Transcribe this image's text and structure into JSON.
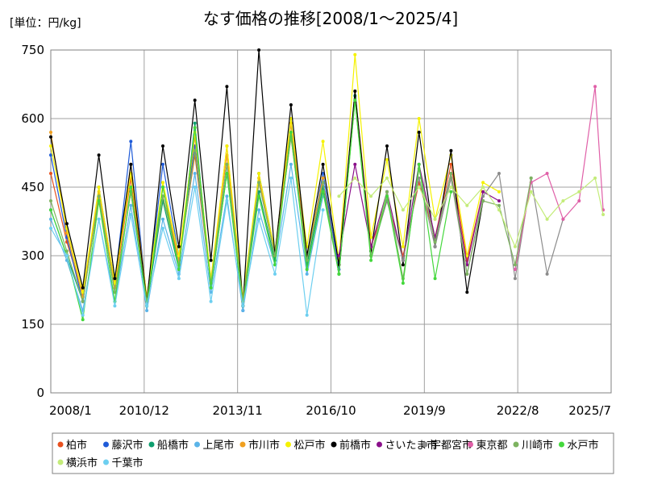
{
  "chart_data": {
    "type": "line",
    "title": "なす価格の推移[2008/1～2025/4]",
    "unit_label": "[単位：円/kg]",
    "xlabel": "",
    "ylabel": "",
    "ylim": [
      0,
      750
    ],
    "y_ticks": [
      "0",
      "150",
      "300",
      "450",
      "600",
      "750"
    ],
    "x_ticks": [
      "2008/1",
      "2010/12",
      "2013/11",
      "2016/10",
      "2019/9",
      "2022/8",
      "2025/7"
    ],
    "xlim": [
      "2008/1",
      "2025/7"
    ],
    "grid": true,
    "legend_position": "bottom",
    "series": [
      {
        "name": "柏市",
        "color": "#e8501e",
        "x": [
          "2008/1",
          "2008/7",
          "2009/1",
          "2009/7",
          "2010/1",
          "2010/7",
          "2011/1",
          "2011/7",
          "2012/1",
          "2012/7",
          "2013/1",
          "2013/7",
          "2014/1",
          "2014/7",
          "2015/1",
          "2015/7",
          "2016/1",
          "2016/7",
          "2017/1",
          "2017/7",
          "2018/1",
          "2018/7",
          "2019/1",
          "2019/7",
          "2020/1",
          "2020/7",
          "2021/1",
          "2021/7"
        ],
        "values": [
          480,
          330,
          215,
          420,
          230,
          470,
          190,
          430,
          290,
          520,
          240,
          540,
          190,
          460,
          300,
          560,
          300,
          460,
          280,
          660,
          320,
          420,
          300,
          460,
          340,
          500,
          290,
          440
        ]
      },
      {
        "name": "藤沢市",
        "color": "#1f5bd8",
        "x": [
          "2008/1",
          "2008/7",
          "2009/1",
          "2009/7",
          "2010/1",
          "2010/7",
          "2011/1",
          "2011/7",
          "2012/1",
          "2012/7",
          "2013/1",
          "2013/7",
          "2014/1",
          "2014/7",
          "2015/1",
          "2015/7",
          "2016/1",
          "2016/7",
          "2017/1"
        ],
        "values": [
          520,
          340,
          200,
          450,
          240,
          550,
          200,
          500,
          300,
          540,
          240,
          500,
          180,
          480,
          310,
          590,
          290,
          480,
          270
        ]
      },
      {
        "name": "船橋市",
        "color": "#0e9e6e",
        "x": [
          "2008/1",
          "2008/7",
          "2009/1",
          "2009/7",
          "2010/1",
          "2010/7",
          "2011/1",
          "2011/7",
          "2012/1",
          "2012/7",
          "2013/1",
          "2013/7",
          "2014/1",
          "2014/7",
          "2015/1",
          "2015/7",
          "2016/1",
          "2016/7",
          "2017/1",
          "2017/7",
          "2018/1"
        ],
        "values": [
          400,
          300,
          200,
          430,
          220,
          440,
          190,
          420,
          270,
          590,
          230,
          480,
          200,
          440,
          290,
          570,
          280,
          450,
          260,
          650,
          300
        ]
      },
      {
        "name": "上尾市",
        "color": "#5bb4e8",
        "x": [
          "2008/1",
          "2008/7",
          "2009/1",
          "2009/7",
          "2010/1",
          "2010/7",
          "2011/1",
          "2011/7",
          "2012/1",
          "2012/7",
          "2013/1",
          "2013/7",
          "2014/1",
          "2014/7",
          "2015/1",
          "2015/7",
          "2016/1",
          "2016/7"
        ],
        "values": [
          380,
          290,
          180,
          380,
          200,
          410,
          180,
          380,
          260,
          480,
          220,
          430,
          180,
          400,
          280,
          500,
          260,
          430
        ]
      },
      {
        "name": "市川市",
        "color": "#f0a020",
        "x": [
          "2008/1",
          "2008/7",
          "2009/1",
          "2009/7",
          "2010/1",
          "2010/7",
          "2011/1",
          "2011/7",
          "2012/1",
          "2012/7",
          "2013/1",
          "2013/7",
          "2014/1",
          "2014/7",
          "2015/1",
          "2015/7",
          "2016/1",
          "2016/7"
        ],
        "values": [
          570,
          350,
          210,
          440,
          230,
          500,
          210,
          450,
          290,
          560,
          250,
          520,
          200,
          470,
          300,
          590,
          300,
          470
        ]
      },
      {
        "name": "松戸市",
        "color": "#f5f200",
        "x": [
          "2008/1",
          "2008/7",
          "2009/1",
          "2009/7",
          "2010/1",
          "2010/7",
          "2011/1",
          "2011/7",
          "2012/1",
          "2012/7",
          "2013/1",
          "2013/7",
          "2014/1",
          "2014/7",
          "2015/1",
          "2015/7",
          "2016/1",
          "2016/7",
          "2017/1",
          "2017/7",
          "2018/1",
          "2018/7",
          "2019/1",
          "2019/7",
          "2020/1",
          "2020/7",
          "2021/1",
          "2021/7",
          "2022/1"
        ],
        "values": [
          540,
          360,
          220,
          450,
          240,
          480,
          210,
          460,
          300,
          570,
          250,
          540,
          210,
          480,
          310,
          600,
          320,
          550,
          290,
          740,
          340,
          510,
          320,
          600,
          380,
          520,
          300,
          460,
          440
        ]
      },
      {
        "name": "前橋市",
        "color": "#000000",
        "x": [
          "2008/1",
          "2008/7",
          "2009/1",
          "2009/7",
          "2010/1",
          "2010/7",
          "2011/1",
          "2011/7",
          "2012/1",
          "2012/7",
          "2013/1",
          "2013/7",
          "2014/1",
          "2014/7",
          "2015/1",
          "2015/7",
          "2016/1",
          "2016/7",
          "2017/1",
          "2017/7",
          "2018/1",
          "2018/7",
          "2019/1",
          "2019/7",
          "2020/1",
          "2020/7",
          "2021/1",
          "2021/7"
        ],
        "values": [
          560,
          370,
          230,
          520,
          250,
          500,
          200,
          540,
          320,
          640,
          290,
          670,
          190,
          750,
          300,
          630,
          300,
          500,
          280,
          660,
          310,
          540,
          280,
          570,
          320,
          530,
          220,
          420
        ]
      },
      {
        "name": "さいたま市",
        "color": "#8a0f8a",
        "x": [
          "2017/1",
          "2017/7",
          "2018/1",
          "2018/7",
          "2019/1",
          "2019/7",
          "2020/1",
          "2020/7",
          "2021/1",
          "2021/7",
          "2022/1"
        ],
        "values": [
          300,
          500,
          320,
          440,
          290,
          500,
          340,
          480,
          280,
          440,
          420
        ]
      },
      {
        "name": "宇都宮市",
        "color": "#8c8c8c",
        "x": [
          "2018/1",
          "2018/7",
          "2019/1",
          "2019/7",
          "2020/1",
          "2020/7",
          "2021/1",
          "2021/7",
          "2022/1",
          "2022/7",
          "2023/1",
          "2023/7",
          "2024/1"
        ],
        "values": [
          300,
          420,
          290,
          470,
          320,
          470,
          260,
          430,
          480,
          250,
          470,
          260,
          380
        ]
      },
      {
        "name": "東京都",
        "color": "#e060a8",
        "x": [
          "2022/7",
          "2023/1",
          "2023/7",
          "2024/1",
          "2024/7",
          "2025/1",
          "2025/4"
        ],
        "values": [
          270,
          460,
          480,
          380,
          420,
          670,
          400
        ]
      },
      {
        "name": "川崎市",
        "color": "#7db360",
        "x": [
          "2008/1",
          "2008/7",
          "2009/1",
          "2009/7",
          "2010/1",
          "2010/7",
          "2011/1",
          "2011/7",
          "2012/1",
          "2012/7",
          "2013/1",
          "2013/7",
          "2014/1",
          "2014/7",
          "2015/1",
          "2015/7",
          "2016/1",
          "2016/7",
          "2017/1",
          "2017/7",
          "2018/1",
          "2018/7",
          "2019/1",
          "2019/7",
          "2020/1",
          "2020/7",
          "2021/1",
          "2021/7",
          "2022/1",
          "2022/7",
          "2023/1"
        ],
        "values": [
          420,
          310,
          200,
          430,
          220,
          440,
          200,
          430,
          280,
          530,
          240,
          500,
          200,
          460,
          300,
          560,
          290,
          460,
          260,
          640,
          300,
          440,
          250,
          490,
          330,
          480,
          260,
          420,
          410,
          280,
          470
        ]
      },
      {
        "name": "水戸市",
        "color": "#44d83c",
        "x": [
          "2008/1",
          "2008/7",
          "2009/1",
          "2009/7",
          "2010/1",
          "2010/7",
          "2011/1",
          "2011/7",
          "2012/1",
          "2012/7",
          "2013/1",
          "2013/7",
          "2014/1",
          "2014/7",
          "2015/1",
          "2015/7",
          "2016/1",
          "2016/7",
          "2017/1",
          "2017/7",
          "2018/1",
          "2018/7",
          "2019/1",
          "2019/7",
          "2020/1",
          "2020/7"
        ],
        "values": [
          400,
          300,
          160,
          420,
          200,
          450,
          190,
          450,
          270,
          580,
          230,
          480,
          190,
          430,
          280,
          570,
          270,
          440,
          260,
          640,
          290,
          430,
          240,
          500,
          250,
          440
        ]
      },
      {
        "name": "横浜市",
        "color": "#c4ec7a",
        "x": [
          "2017/1",
          "2017/7",
          "2018/1",
          "2018/7",
          "2019/1",
          "2019/7",
          "2020/1",
          "2020/7",
          "2021/1",
          "2021/7",
          "2022/1",
          "2022/7",
          "2023/1",
          "2023/7",
          "2024/1",
          "2024/7",
          "2025/1",
          "2025/4"
        ],
        "values": [
          430,
          470,
          430,
          470,
          400,
          450,
          380,
          450,
          410,
          450,
          400,
          320,
          440,
          380,
          420,
          440,
          470,
          390
        ]
      },
      {
        "name": "千葉市",
        "color": "#6dcff0",
        "x": [
          "2008/1",
          "2008/7",
          "2009/1",
          "2009/7",
          "2010/1",
          "2010/7",
          "2011/1",
          "2011/7",
          "2012/1",
          "2012/7",
          "2013/1",
          "2013/7",
          "2014/1",
          "2014/7",
          "2015/1",
          "2015/7",
          "2016/1",
          "2016/7"
        ],
        "values": [
          360,
          300,
          170,
          380,
          190,
          390,
          190,
          360,
          250,
          450,
          200,
          420,
          190,
          380,
          260,
          470,
          170,
          400
        ]
      }
    ]
  }
}
